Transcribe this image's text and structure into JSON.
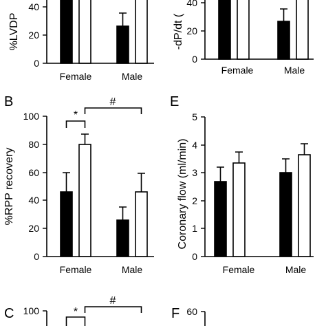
{
  "colors": {
    "filled": "#000000",
    "open": "#ffffff"
  },
  "chart_data": [
    {
      "panel": "",
      "type": "bar",
      "ylabel": "%LVDP",
      "ylim": [
        0,
        100
      ],
      "yticks": [
        0,
        20,
        40
      ],
      "categories": [
        "Female",
        "Male"
      ],
      "series": [
        {
          "name": "",
          "style": "filled",
          "values": [
            100,
            26
          ],
          "errors": [
            0,
            9
          ]
        },
        {
          "name": "",
          "style": "open",
          "values": [
            100,
            100
          ],
          "errors": [
            0,
            0
          ]
        }
      ]
    },
    {
      "panel": "",
      "type": "bar",
      "ylabel": "-dP/dt (",
      "ylim": [
        0,
        100
      ],
      "yticks": [
        0,
        20,
        40
      ],
      "categories": [
        "Female",
        "Male"
      ],
      "series": [
        {
          "name": "",
          "style": "filled",
          "values": [
            100,
            27
          ],
          "errors": [
            0,
            9
          ]
        },
        {
          "name": "",
          "style": "open",
          "values": [
            100,
            100
          ],
          "errors": [
            0,
            0
          ]
        }
      ]
    },
    {
      "panel": "B",
      "type": "bar",
      "ylabel": "%RPP recovery",
      "ylim": [
        0,
        100
      ],
      "yticks": [
        0,
        20,
        40,
        60,
        80,
        100
      ],
      "categories": [
        "Female",
        "Male"
      ],
      "series": [
        {
          "name": "",
          "style": "filled",
          "values": [
            46,
            26
          ],
          "errors": [
            14,
            9
          ]
        },
        {
          "name": "",
          "style": "open",
          "values": [
            80,
            46
          ],
          "errors": [
            7,
            13
          ]
        }
      ],
      "annotations": [
        {
          "text": "*",
          "between": "Female filled / Female open"
        },
        {
          "text": "#",
          "between": "Female open / Male open"
        }
      ]
    },
    {
      "panel": "E",
      "type": "bar",
      "ylabel": "Coronary flow (ml/min)",
      "ylim": [
        0,
        5
      ],
      "yticks": [
        0,
        1,
        2,
        3,
        4,
        5
      ],
      "categories": [
        "Female",
        "Male"
      ],
      "series": [
        {
          "name": "",
          "style": "filled",
          "values": [
            2.7,
            3.0
          ],
          "errors": [
            0.5,
            0.5
          ]
        },
        {
          "name": "",
          "style": "open",
          "values": [
            3.35,
            3.65
          ],
          "errors": [
            0.4,
            0.4
          ]
        }
      ]
    },
    {
      "panel": "C",
      "type": "bar",
      "ylabel": "",
      "ylim": [
        0,
        100
      ],
      "yticks": [
        100
      ],
      "categories": [],
      "series": [],
      "annotations": [
        {
          "text": "*"
        },
        {
          "text": "#"
        }
      ]
    },
    {
      "panel": "F",
      "type": "bar",
      "ylabel": "",
      "ylim": [
        0,
        60
      ],
      "yticks": [
        60
      ],
      "categories": [],
      "series": []
    }
  ]
}
